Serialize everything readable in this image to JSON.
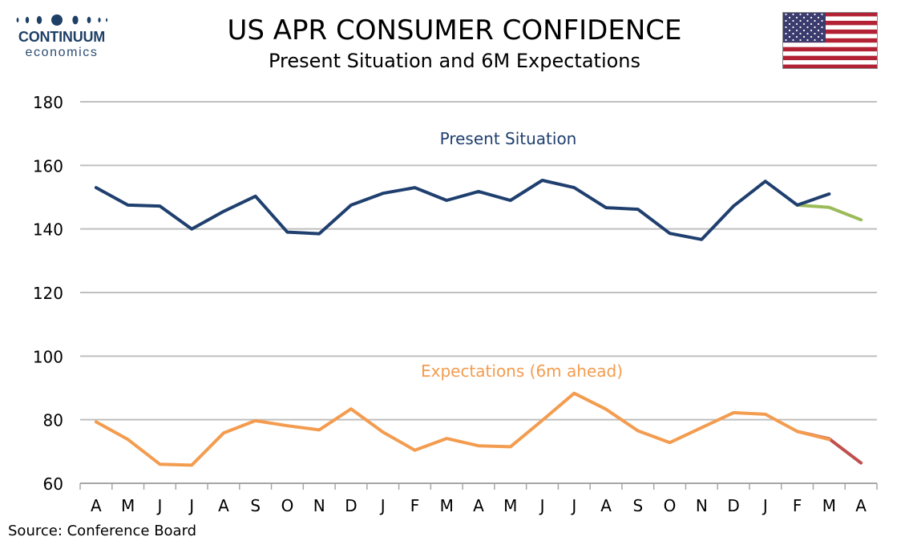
{
  "header": {
    "logo_word": "CONTINUUM",
    "logo_sub": "economics",
    "title": "US APR CONSUMER CONFIDENCE",
    "subtitle": "Present Situation and 6M Expectations"
  },
  "source": "Source: Conference Board",
  "colors": {
    "present": "#1f3f6e",
    "present_latest": "#9bbb59",
    "expectations": "#f39c4f",
    "expectations_latest": "#c0504d",
    "grid": "#bfbfbf",
    "logo": "#1e3f66"
  },
  "chart_data": {
    "type": "line",
    "categories": [
      "A",
      "M",
      "J",
      "J",
      "A",
      "S",
      "O",
      "N",
      "D",
      "J",
      "F",
      "M",
      "A",
      "M",
      "J",
      "J",
      "A",
      "S",
      "O",
      "N",
      "D",
      "J",
      "F",
      "M",
      "A"
    ],
    "ylim": [
      60,
      180
    ],
    "yticks": [
      60,
      80,
      100,
      120,
      140,
      160,
      180
    ],
    "grid": true,
    "series": [
      {
        "name": "Present Situation",
        "values": [
          153,
          147.5,
          147.2,
          140,
          145.5,
          150.3,
          139,
          138.5,
          147.5,
          151.2,
          153,
          149,
          151.8,
          149,
          155.3,
          153,
          146.7,
          146.2,
          138.6,
          136.7,
          147.2,
          155,
          147.5,
          151,
          null
        ],
        "revision": {
          "start_index": 22,
          "values": [
            147.5,
            146.8,
            142.9
          ]
        }
      },
      {
        "name": "Expectations (6m ahead)",
        "values": [
          79.3,
          73.8,
          66,
          65.7,
          75.8,
          79.7,
          78.1,
          76.8,
          83.4,
          76.1,
          70.4,
          74.1,
          71.8,
          71.5,
          79.8,
          88.3,
          83.3,
          76.5,
          72.8,
          77.5,
          82.2,
          81.7,
          76.3,
          73.8,
          null
        ],
        "revision": {
          "start_index": 22,
          "values": [
            76.3,
            74,
            66.4
          ]
        }
      }
    ]
  }
}
